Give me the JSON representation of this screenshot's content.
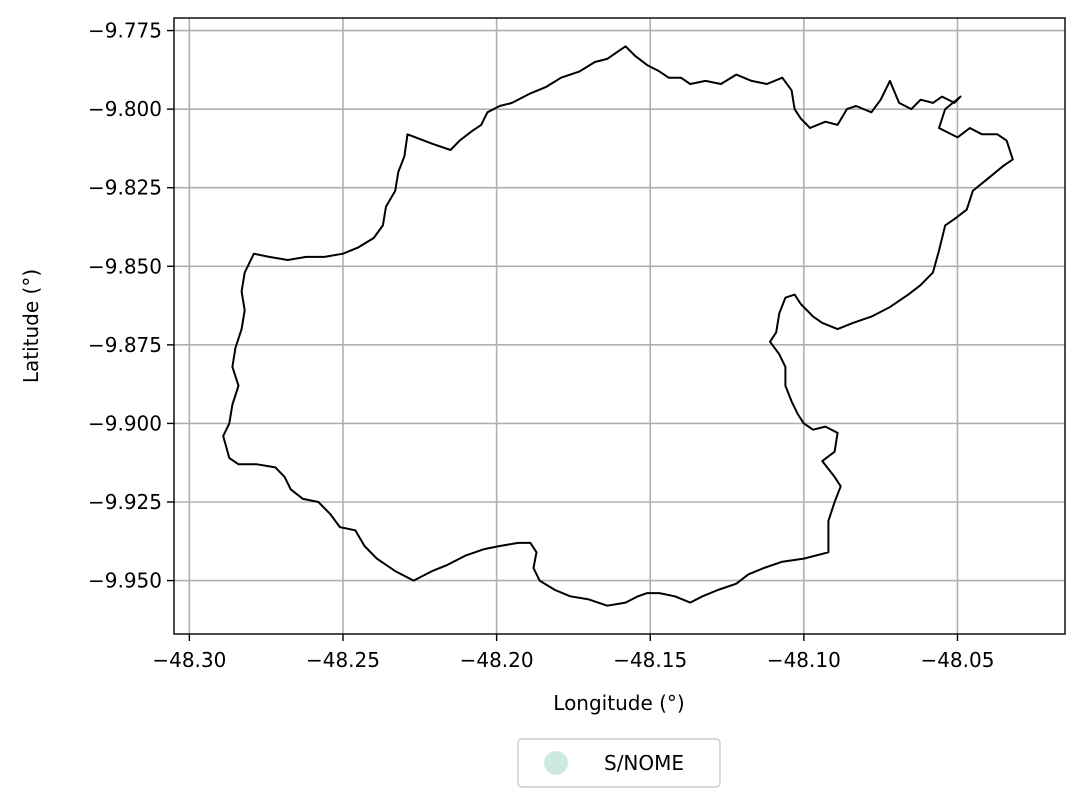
{
  "map": {
    "xlabel": "Longitude (°)",
    "ylabel": "Latitude (°)",
    "xlim": [
      -48.305,
      -48.015
    ],
    "ylim": [
      -9.967,
      -9.771
    ],
    "x_ticks": [
      -48.3,
      -48.25,
      -48.2,
      -48.15,
      -48.1,
      -48.05
    ],
    "x_tick_labels": [
      "−48.30",
      "−48.25",
      "−48.20",
      "−48.15",
      "−48.10",
      "−48.05"
    ],
    "y_ticks": [
      -9.775,
      -9.8,
      -9.825,
      -9.85,
      -9.875,
      -9.9,
      -9.925,
      -9.95
    ],
    "y_tick_labels": [
      "−9.775",
      "−9.800",
      "−9.825",
      "−9.850",
      "−9.875",
      "−9.900",
      "−9.925",
      "−9.950"
    ],
    "grid": true,
    "boundary_color": "#000000",
    "grid_color": "#b0b0b0",
    "legend": {
      "placement": "bottom-center-outside",
      "entries": [
        {
          "label": "S/NOME",
          "color": "#cdeae0"
        }
      ]
    },
    "boundary": [
      [
        -48.229,
        -9.808
      ],
      [
        -48.221,
        -9.811
      ],
      [
        -48.215,
        -9.813
      ],
      [
        -48.212,
        -9.81
      ],
      [
        -48.208,
        -9.807
      ],
      [
        -48.205,
        -9.805
      ],
      [
        -48.203,
        -9.801
      ],
      [
        -48.199,
        -9.799
      ],
      [
        -48.195,
        -9.798
      ],
      [
        -48.189,
        -9.795
      ],
      [
        -48.184,
        -9.793
      ],
      [
        -48.179,
        -9.79
      ],
      [
        -48.173,
        -9.788
      ],
      [
        -48.168,
        -9.785
      ],
      [
        -48.164,
        -9.784
      ],
      [
        -48.161,
        -9.782
      ],
      [
        -48.158,
        -9.78
      ],
      [
        -48.155,
        -9.783
      ],
      [
        -48.151,
        -9.786
      ],
      [
        -48.147,
        -9.788
      ],
      [
        -48.144,
        -9.79
      ],
      [
        -48.14,
        -9.79
      ],
      [
        -48.137,
        -9.792
      ],
      [
        -48.132,
        -9.791
      ],
      [
        -48.127,
        -9.792
      ],
      [
        -48.122,
        -9.789
      ],
      [
        -48.117,
        -9.791
      ],
      [
        -48.112,
        -9.792
      ],
      [
        -48.107,
        -9.79
      ],
      [
        -48.104,
        -9.794
      ],
      [
        -48.103,
        -9.8
      ],
      [
        -48.101,
        -9.803
      ],
      [
        -48.098,
        -9.806
      ],
      [
        -48.093,
        -9.804
      ],
      [
        -48.089,
        -9.805
      ],
      [
        -48.086,
        -9.8
      ],
      [
        -48.083,
        -9.799
      ],
      [
        -48.078,
        -9.801
      ],
      [
        -48.075,
        -9.797
      ],
      [
        -48.072,
        -9.791
      ],
      [
        -48.069,
        -9.798
      ],
      [
        -48.065,
        -9.8
      ],
      [
        -48.062,
        -9.797
      ],
      [
        -48.058,
        -9.798
      ],
      [
        -48.055,
        -9.796
      ],
      [
        -48.051,
        -9.798
      ],
      [
        -48.049,
        -9.796
      ],
      [
        -48.054,
        -9.8
      ],
      [
        -48.056,
        -9.806
      ],
      [
        -48.05,
        -9.809
      ],
      [
        -48.046,
        -9.806
      ],
      [
        -48.042,
        -9.808
      ],
      [
        -48.037,
        -9.808
      ],
      [
        -48.034,
        -9.81
      ],
      [
        -48.032,
        -9.816
      ],
      [
        -48.035,
        -9.818
      ],
      [
        -48.04,
        -9.822
      ],
      [
        -48.045,
        -9.826
      ],
      [
        -48.047,
        -9.832
      ],
      [
        -48.051,
        -9.835
      ],
      [
        -48.054,
        -9.837
      ],
      [
        -48.056,
        -9.845
      ],
      [
        -48.058,
        -9.852
      ],
      [
        -48.062,
        -9.856
      ],
      [
        -48.066,
        -9.859
      ],
      [
        -48.072,
        -9.863
      ],
      [
        -48.078,
        -9.866
      ],
      [
        -48.084,
        -9.868
      ],
      [
        -48.089,
        -9.87
      ],
      [
        -48.094,
        -9.868
      ],
      [
        -48.097,
        -9.866
      ],
      [
        -48.101,
        -9.862
      ],
      [
        -48.103,
        -9.859
      ],
      [
        -48.106,
        -9.86
      ],
      [
        -48.108,
        -9.865
      ],
      [
        -48.109,
        -9.871
      ],
      [
        -48.111,
        -9.874
      ],
      [
        -48.108,
        -9.878
      ],
      [
        -48.106,
        -9.882
      ],
      [
        -48.106,
        -9.888
      ],
      [
        -48.104,
        -9.893
      ],
      [
        -48.102,
        -9.897
      ],
      [
        -48.1,
        -9.9
      ],
      [
        -48.097,
        -9.902
      ],
      [
        -48.093,
        -9.901
      ],
      [
        -48.089,
        -9.903
      ],
      [
        -48.09,
        -9.909
      ],
      [
        -48.094,
        -9.912
      ],
      [
        -48.09,
        -9.917
      ],
      [
        -48.088,
        -9.92
      ],
      [
        -48.09,
        -9.925
      ],
      [
        -48.092,
        -9.931
      ],
      [
        -48.092,
        -9.937
      ],
      [
        -48.092,
        -9.941
      ],
      [
        -48.1,
        -9.943
      ],
      [
        -48.107,
        -9.944
      ],
      [
        -48.113,
        -9.946
      ],
      [
        -48.118,
        -9.948
      ],
      [
        -48.122,
        -9.951
      ],
      [
        -48.128,
        -9.953
      ],
      [
        -48.133,
        -9.955
      ],
      [
        -48.137,
        -9.957
      ],
      [
        -48.142,
        -9.955
      ],
      [
        -48.147,
        -9.954
      ],
      [
        -48.151,
        -9.954
      ],
      [
        -48.154,
        -9.955
      ],
      [
        -48.158,
        -9.957
      ],
      [
        -48.164,
        -9.958
      ],
      [
        -48.17,
        -9.956
      ],
      [
        -48.176,
        -9.955
      ],
      [
        -48.181,
        -9.953
      ],
      [
        -48.186,
        -9.95
      ],
      [
        -48.188,
        -9.946
      ],
      [
        -48.187,
        -9.941
      ],
      [
        -48.189,
        -9.938
      ],
      [
        -48.193,
        -9.938
      ],
      [
        -48.199,
        -9.939
      ],
      [
        -48.204,
        -9.94
      ],
      [
        -48.21,
        -9.942
      ],
      [
        -48.216,
        -9.945
      ],
      [
        -48.221,
        -9.947
      ],
      [
        -48.227,
        -9.95
      ],
      [
        -48.233,
        -9.947
      ],
      [
        -48.239,
        -9.943
      ],
      [
        -48.243,
        -9.939
      ],
      [
        -48.246,
        -9.934
      ],
      [
        -48.251,
        -9.933
      ],
      [
        -48.254,
        -9.929
      ],
      [
        -48.258,
        -9.925
      ],
      [
        -48.263,
        -9.924
      ],
      [
        -48.267,
        -9.921
      ],
      [
        -48.269,
        -9.917
      ],
      [
        -48.272,
        -9.914
      ],
      [
        -48.278,
        -9.913
      ],
      [
        -48.284,
        -9.913
      ],
      [
        -48.287,
        -9.911
      ],
      [
        -48.289,
        -9.904
      ],
      [
        -48.287,
        -9.9
      ],
      [
        -48.286,
        -9.894
      ],
      [
        -48.284,
        -9.888
      ],
      [
        -48.286,
        -9.882
      ],
      [
        -48.285,
        -9.876
      ],
      [
        -48.283,
        -9.87
      ],
      [
        -48.282,
        -9.864
      ],
      [
        -48.283,
        -9.858
      ],
      [
        -48.282,
        -9.852
      ],
      [
        -48.279,
        -9.846
      ],
      [
        -48.274,
        -9.847
      ],
      [
        -48.268,
        -9.848
      ],
      [
        -48.262,
        -9.847
      ],
      [
        -48.256,
        -9.847
      ],
      [
        -48.25,
        -9.846
      ],
      [
        -48.245,
        -9.844
      ],
      [
        -48.24,
        -9.841
      ],
      [
        -48.237,
        -9.837
      ],
      [
        -48.236,
        -9.831
      ],
      [
        -48.233,
        -9.826
      ],
      [
        -48.232,
        -9.82
      ],
      [
        -48.23,
        -9.815
      ],
      [
        -48.229,
        -9.808
      ]
    ]
  }
}
